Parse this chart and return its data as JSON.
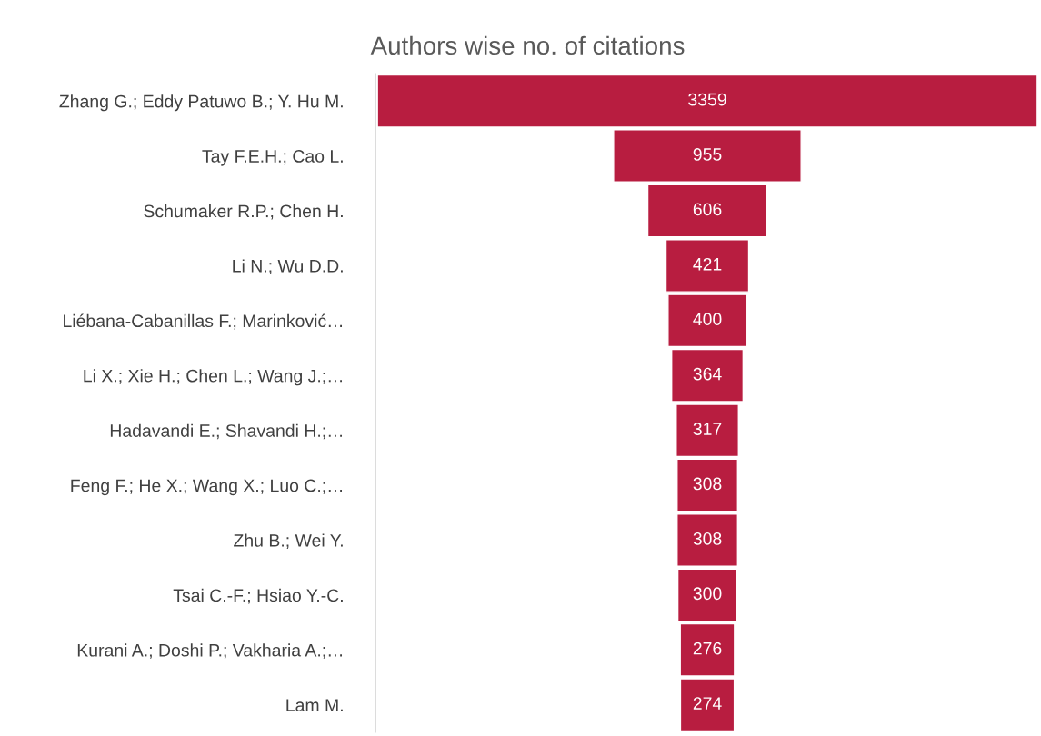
{
  "chart_data": {
    "type": "other",
    "title": "Authors wise no. of citations",
    "categories": [
      "Zhang G.; Eddy Patuwo B.; Y. Hu M.",
      "Tay F.E.H.; Cao L.",
      "Schumaker R.P.; Chen H.",
      "Li N.; Wu D.D.",
      "Liébana-Cabanillas F.; Marinković…",
      "Li X.; Xie H.; Chen L.; Wang J.;…",
      "Hadavandi E.; Shavandi H.;…",
      "Feng F.; He X.; Wang X.; Luo C.;…",
      "Zhu B.; Wei Y.",
      "Tsai C.-F.; Hsiao Y.-C.",
      "Kurani A.; Doshi P.; Vakharia A.;…",
      "Lam M."
    ],
    "values": [
      3359,
      955,
      606,
      421,
      400,
      364,
      317,
      308,
      308,
      300,
      276,
      274
    ],
    "color": "#b81d40",
    "data_labels": true
  }
}
